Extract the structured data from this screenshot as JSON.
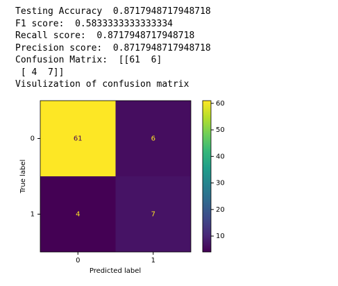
{
  "output_lines": [
    "Testing Accuracy  0.8717948717948718",
    "F1 score:  0.5833333333333334",
    "Recall score:  0.8717948717948718",
    "Precision score:  0.8717948717948718",
    "Confusion Matrix:  [[61  6]",
    " [ 4  7]]",
    "Visulization of confusion matrix"
  ],
  "chart_data": {
    "type": "heatmap",
    "x_categories": [
      "0",
      "1"
    ],
    "y_categories": [
      "0",
      "1"
    ],
    "values": [
      [
        61,
        6
      ],
      [
        4,
        7
      ]
    ],
    "xlabel": "Predicted label",
    "ylabel": "True label",
    "colormap": "viridis",
    "clim": [
      4,
      61
    ],
    "cticks": [
      10,
      20,
      30,
      40,
      50,
      60
    ]
  }
}
